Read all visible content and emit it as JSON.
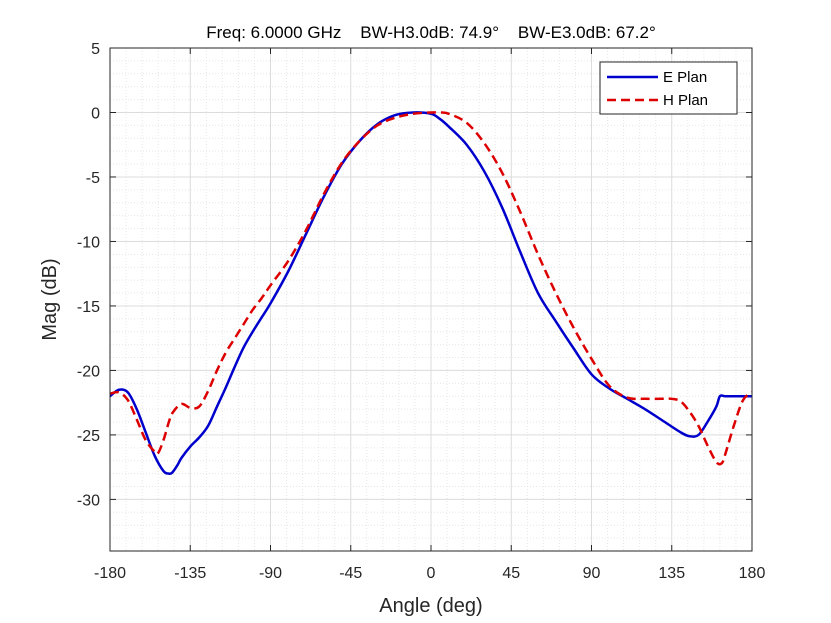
{
  "chart_data": {
    "type": "line",
    "title": "Freq: 6.0000 GHz    BW-H3.0dB: 74.9°    BW-E3.0dB: 67.2°",
    "xlabel": "Angle (deg)",
    "ylabel": "Mag (dB)",
    "xlim": [
      -180,
      180
    ],
    "ylim": [
      -34,
      5
    ],
    "xticks": [
      -180,
      -135,
      -90,
      -45,
      0,
      45,
      90,
      135,
      180
    ],
    "yticks": [
      5,
      0,
      -5,
      -10,
      -15,
      -20,
      -25,
      -30
    ],
    "grid": true,
    "minor_grid": true,
    "legend_position": "top-right",
    "series": [
      {
        "name": "E Plan",
        "color": "#0000cc",
        "dash": "solid",
        "x": [
          -180,
          -175,
          -170,
          -165,
          -160,
          -155,
          -150,
          -147,
          -145,
          -142,
          -140,
          -135,
          -130,
          -125,
          -120,
          -115,
          -110,
          -105,
          -100,
          -95,
          -90,
          -80,
          -70,
          -60,
          -50,
          -40,
          -30,
          -20,
          -10,
          0,
          5,
          10,
          20,
          30,
          40,
          50,
          60,
          70,
          80,
          90,
          100,
          110,
          120,
          130,
          140,
          145,
          150,
          155,
          160,
          162,
          165,
          170,
          175,
          180
        ],
        "y": [
          -22.0,
          -21.5,
          -21.7,
          -23.0,
          -24.8,
          -26.6,
          -27.8,
          -28.0,
          -27.9,
          -27.3,
          -26.8,
          -25.9,
          -25.2,
          -24.3,
          -22.8,
          -21.3,
          -19.7,
          -18.2,
          -17.0,
          -15.9,
          -14.8,
          -12.3,
          -9.4,
          -6.5,
          -4.0,
          -2.2,
          -0.9,
          -0.2,
          0.0,
          -0.1,
          -0.5,
          -1.1,
          -2.5,
          -4.6,
          -7.4,
          -10.8,
          -14.0,
          -16.2,
          -18.3,
          -20.3,
          -21.4,
          -22.2,
          -23.0,
          -23.9,
          -24.8,
          -25.1,
          -25.0,
          -24.0,
          -22.8,
          -22.0,
          -22.0,
          -22.0,
          -22.0,
          -22.0
        ]
      },
      {
        "name": "H Plan",
        "color": "#dd0000",
        "dash": "dashed",
        "x": [
          -180,
          -175,
          -170,
          -165,
          -160,
          -155,
          -153,
          -150,
          -147,
          -145,
          -140,
          -135,
          -130,
          -125,
          -120,
          -115,
          -110,
          -105,
          -100,
          -95,
          -90,
          -80,
          -70,
          -60,
          -50,
          -40,
          -30,
          -20,
          -10,
          0,
          5,
          10,
          20,
          30,
          40,
          50,
          60,
          70,
          80,
          90,
          100,
          110,
          120,
          130,
          135,
          140,
          145,
          150,
          155,
          160,
          163,
          165,
          170,
          175,
          180
        ],
        "y": [
          -21.8,
          -21.7,
          -22.3,
          -23.8,
          -25.4,
          -26.3,
          -26.4,
          -25.4,
          -24.0,
          -23.3,
          -22.6,
          -22.9,
          -22.8,
          -21.6,
          -20.0,
          -18.6,
          -17.5,
          -16.4,
          -15.3,
          -14.4,
          -13.4,
          -11.5,
          -9.1,
          -6.3,
          -3.9,
          -2.2,
          -1.0,
          -0.4,
          -0.1,
          0.0,
          0.0,
          -0.1,
          -0.8,
          -2.4,
          -4.7,
          -7.7,
          -11.0,
          -14.0,
          -16.7,
          -19.1,
          -21.2,
          -22.1,
          -22.2,
          -22.2,
          -22.2,
          -22.4,
          -23.2,
          -24.3,
          -25.8,
          -27.1,
          -27.2,
          -26.5,
          -24.2,
          -22.3,
          -21.7
        ]
      }
    ]
  }
}
